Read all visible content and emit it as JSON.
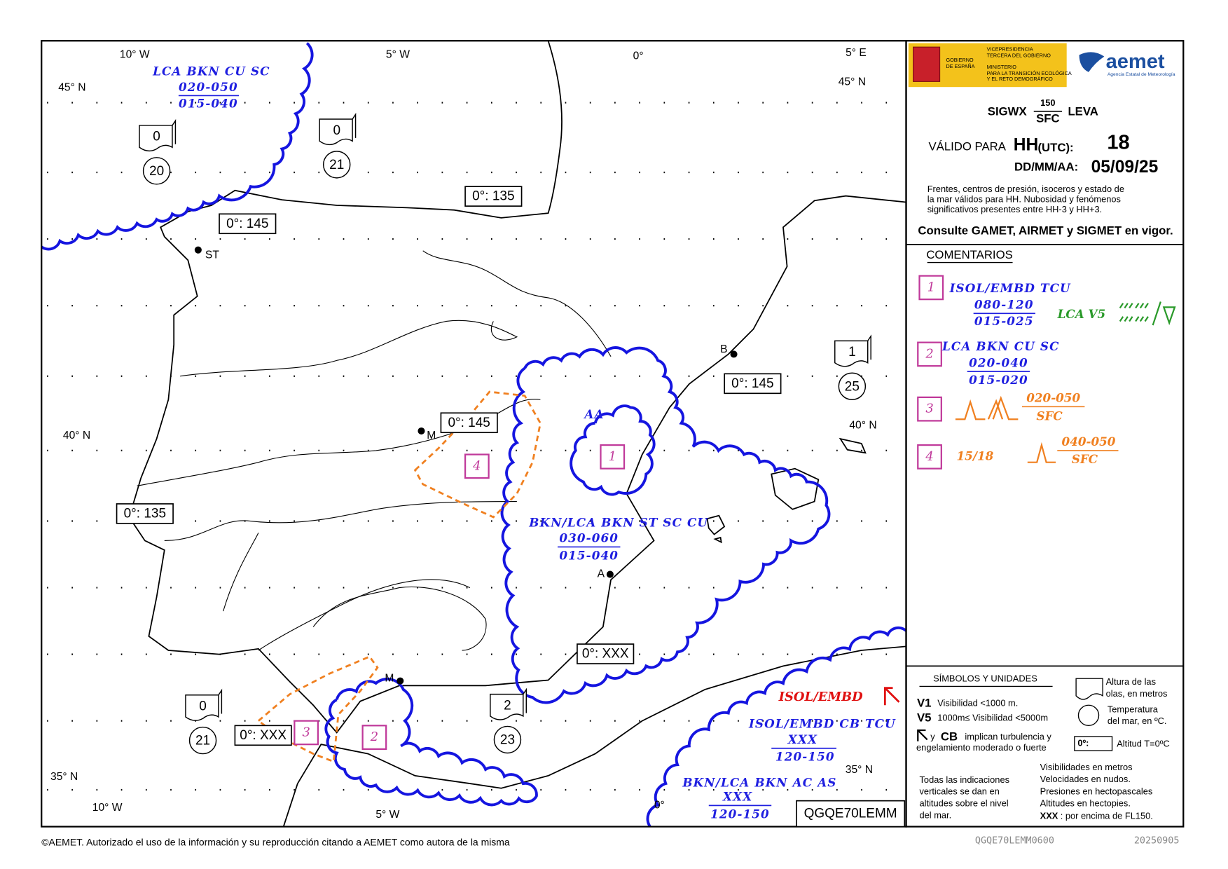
{
  "map": {
    "lon_top": [
      "10° W",
      "5° W",
      "0°",
      "5° E"
    ],
    "lat": [
      "45° N",
      "45° N",
      "40° N",
      "40° N",
      "35° N",
      "35° N"
    ],
    "lon_bottom": [
      "10° W",
      "5° W",
      "0°"
    ],
    "cities": [
      "ST",
      "M",
      "B",
      "A",
      "M"
    ],
    "freezing_levels": [
      "0°: 135",
      "0°: 145",
      "0°: 145",
      "0°: 145",
      "0°: 135",
      "0°: XXX",
      "0°: XXX"
    ],
    "sea_state": [
      {
        "wave": "0",
        "temp": "20"
      },
      {
        "wave": "0",
        "temp": "21"
      },
      {
        "wave": "1",
        "temp": "25"
      },
      {
        "wave": "0",
        "temp": "21"
      },
      {
        "wave": "2",
        "temp": "23"
      }
    ],
    "areas": [
      {
        "lines": [
          "LCA BKN CU SC",
          "020-050",
          "015-040"
        ]
      },
      {
        "symbol": "AA",
        "lines": [
          "BKN/LCA BKN ST SC CU",
          "030-060",
          "015-040"
        ]
      },
      {
        "warning": "ISOL/EMBD",
        "lines": [
          "ISOL/EMBD CB TCU",
          "XXX",
          "120-150"
        ]
      },
      {
        "lines": [
          "BKN/LCA BKN AC AS",
          "XXX",
          "120-150"
        ]
      }
    ],
    "markers": [
      "1",
      "4",
      "3",
      "2"
    ]
  },
  "panel": {
    "gov": [
      "GOBIERNO",
      "DE ESPAÑA"
    ],
    "vice": [
      "VICEPRESIDENCIA",
      "TERCERA DEL GOBIERNO"
    ],
    "ministry": [
      "MINISTERIO",
      "PARA LA TRANSICIÓN ECOLÓGICA",
      "Y EL RETO DEMOGRÁFICO"
    ],
    "aemet": "aemet",
    "aemet_sub": "Agencia Estatal de Meteorología",
    "product": "SIGWX",
    "upper": "150",
    "lower": "SFC",
    "region": "LEVA",
    "valid": "VÁLIDO PARA",
    "hh": "HH",
    "utc": "(UTC):",
    "hour": "18",
    "date_label": "DD/MM/AA:",
    "date": "05/09/25",
    "note": [
      "Frentes, centros de presión, isoceros y estado de",
      "la mar válidos para HH. Nubosidad y fenómenos",
      "significativos presentes entre HH-3 y HH+3."
    ],
    "consult": "Consulte GAMET, AIRMET y SIGMET en vigor.",
    "comments_title": "COMENTARIOS",
    "comments": [
      {
        "id": "1",
        "lines": [
          "ISOL/EMBD TCU",
          "080-120",
          "015-025"
        ],
        "extra": "LCA V5"
      },
      {
        "id": "2",
        "lines": [
          "LCA BKN CU SC",
          "020-040",
          "015-020"
        ]
      },
      {
        "id": "3",
        "lines": [
          "020-050",
          "SFC"
        ]
      },
      {
        "id": "4",
        "extra": "15/18",
        "lines": [
          "040-050",
          "SFC"
        ]
      }
    ],
    "symbols": {
      "title": "SÍMBOLOS Y UNIDADES",
      "v1": "V1",
      "v1_text": "Visibilidad <1000 m.",
      "v5": "V5",
      "v5_text": "1000m≤ Visibilidad <5000m",
      "y": "y",
      "cb": "CB",
      "turb": [
        "implican turbulencia y",
        "engelamiento moderado o fuerte"
      ],
      "wave": [
        "Altura de las",
        "olas, en metros"
      ],
      "temp": [
        "Temperatura",
        "del mar, en ºC."
      ],
      "fz": "0º:",
      "fz_text": "Altitud T=0ºC",
      "vertical": [
        "Todas las indicaciones",
        "verticales se dan en",
        "altitudes sobre el nivel",
        "del mar."
      ],
      "units": [
        "Visibilidades en metros",
        "Velocidades en nudos.",
        "Presiones en hectopascales",
        "Altitudes en hectopies."
      ],
      "xxx": "XXX",
      "xxx_text": ": por encima de FL150."
    },
    "product_code": "QGQE70LEMM"
  },
  "footer": {
    "copyright": "©AEMET. Autorizado el uso de la información y su reproducción citando a AEMET como autora de la misma",
    "file": "QGQE70LEMM0600",
    "date": "20250905"
  }
}
